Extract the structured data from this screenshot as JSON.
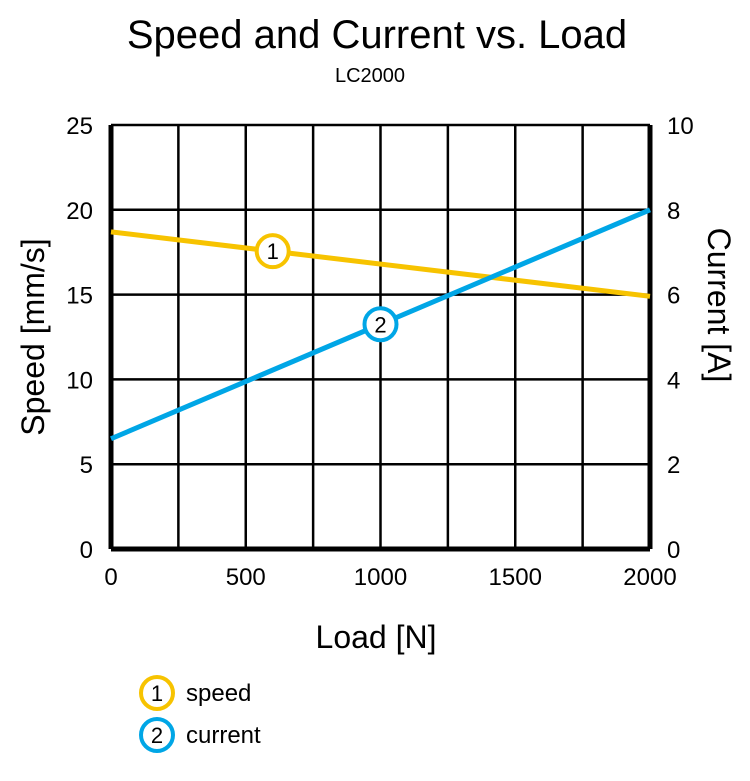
{
  "chart_data": {
    "type": "line",
    "title": "Speed and Current vs. Load",
    "subtitle": "LC2000",
    "xlabel": "Load [N]",
    "ylabel": "Speed [mm/s]",
    "y2label": "Current [A]",
    "xlim": [
      0,
      2000
    ],
    "ylim": [
      0,
      25
    ],
    "y2lim": [
      0,
      10
    ],
    "xticks": [
      "0",
      "500",
      "1000",
      "1500",
      "2000"
    ],
    "yticks": [
      "0",
      "5",
      "10",
      "15",
      "20",
      "25"
    ],
    "y2ticks": [
      "0",
      "2",
      "4",
      "6",
      "8",
      "10"
    ],
    "grid": true,
    "legend_position": "bottom-left",
    "series": [
      {
        "name": "speed",
        "marker_label": "1",
        "axis": "left",
        "color": "#f7c300",
        "x": [
          0,
          2000
        ],
        "y": [
          18.7,
          14.9
        ],
        "marker_at": 600
      },
      {
        "name": "current",
        "marker_label": "2",
        "axis": "right",
        "color": "#00a6e6",
        "x": [
          0,
          2000
        ],
        "y": [
          2.6,
          8.0
        ],
        "marker_at": 1000
      }
    ]
  }
}
